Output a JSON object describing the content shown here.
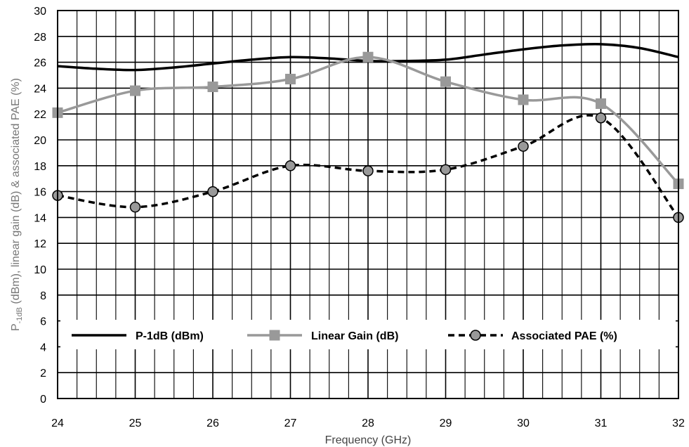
{
  "chart_data": {
    "type": "line",
    "xlabel": "Frequency (GHz)",
    "ylabel": {
      "prefix": "P",
      "subscript": "-1dB",
      "rest": " (dBm), linear gain (dB) & associated PAE (%)"
    },
    "xlim": [
      24,
      32
    ],
    "ylim": [
      0,
      30
    ],
    "x_ticks": [
      24,
      25,
      26,
      27,
      28,
      29,
      30,
      31,
      32
    ],
    "y_ticks": [
      0,
      2,
      4,
      6,
      8,
      10,
      12,
      14,
      16,
      18,
      20,
      22,
      24,
      26,
      28,
      30
    ],
    "grid": true,
    "legend_position": "bottom-inside",
    "series": [
      {
        "name": "P-1dB (dBm)",
        "style": "solid",
        "color": "#000000",
        "marker": "none",
        "x": [
          24,
          24.5,
          25,
          25.5,
          26,
          26.5,
          27,
          27.5,
          28,
          28.5,
          29,
          29.5,
          30,
          30.5,
          31,
          31.5,
          32
        ],
        "y": [
          25.7,
          25.5,
          25.4,
          25.6,
          25.9,
          26.2,
          26.4,
          26.3,
          26.1,
          26.1,
          26.2,
          26.6,
          27.0,
          27.3,
          27.4,
          27.1,
          26.4
        ]
      },
      {
        "name": "Linear Gain (dB)",
        "style": "solid",
        "color": "#999999",
        "marker": "square",
        "x": [
          24,
          25,
          26,
          27,
          28,
          29,
          30,
          31,
          32
        ],
        "y": [
          22.1,
          23.8,
          24.1,
          24.7,
          26.4,
          24.5,
          23.1,
          22.8,
          16.6
        ]
      },
      {
        "name": "Associated PAE (%)",
        "style": "dashed",
        "color": "#000000",
        "marker": "circle",
        "x": [
          24,
          25,
          26,
          27,
          28,
          29,
          30,
          31,
          32
        ],
        "y": [
          15.7,
          14.8,
          16.0,
          18.0,
          17.6,
          17.7,
          19.5,
          21.7,
          14.0
        ]
      }
    ]
  }
}
